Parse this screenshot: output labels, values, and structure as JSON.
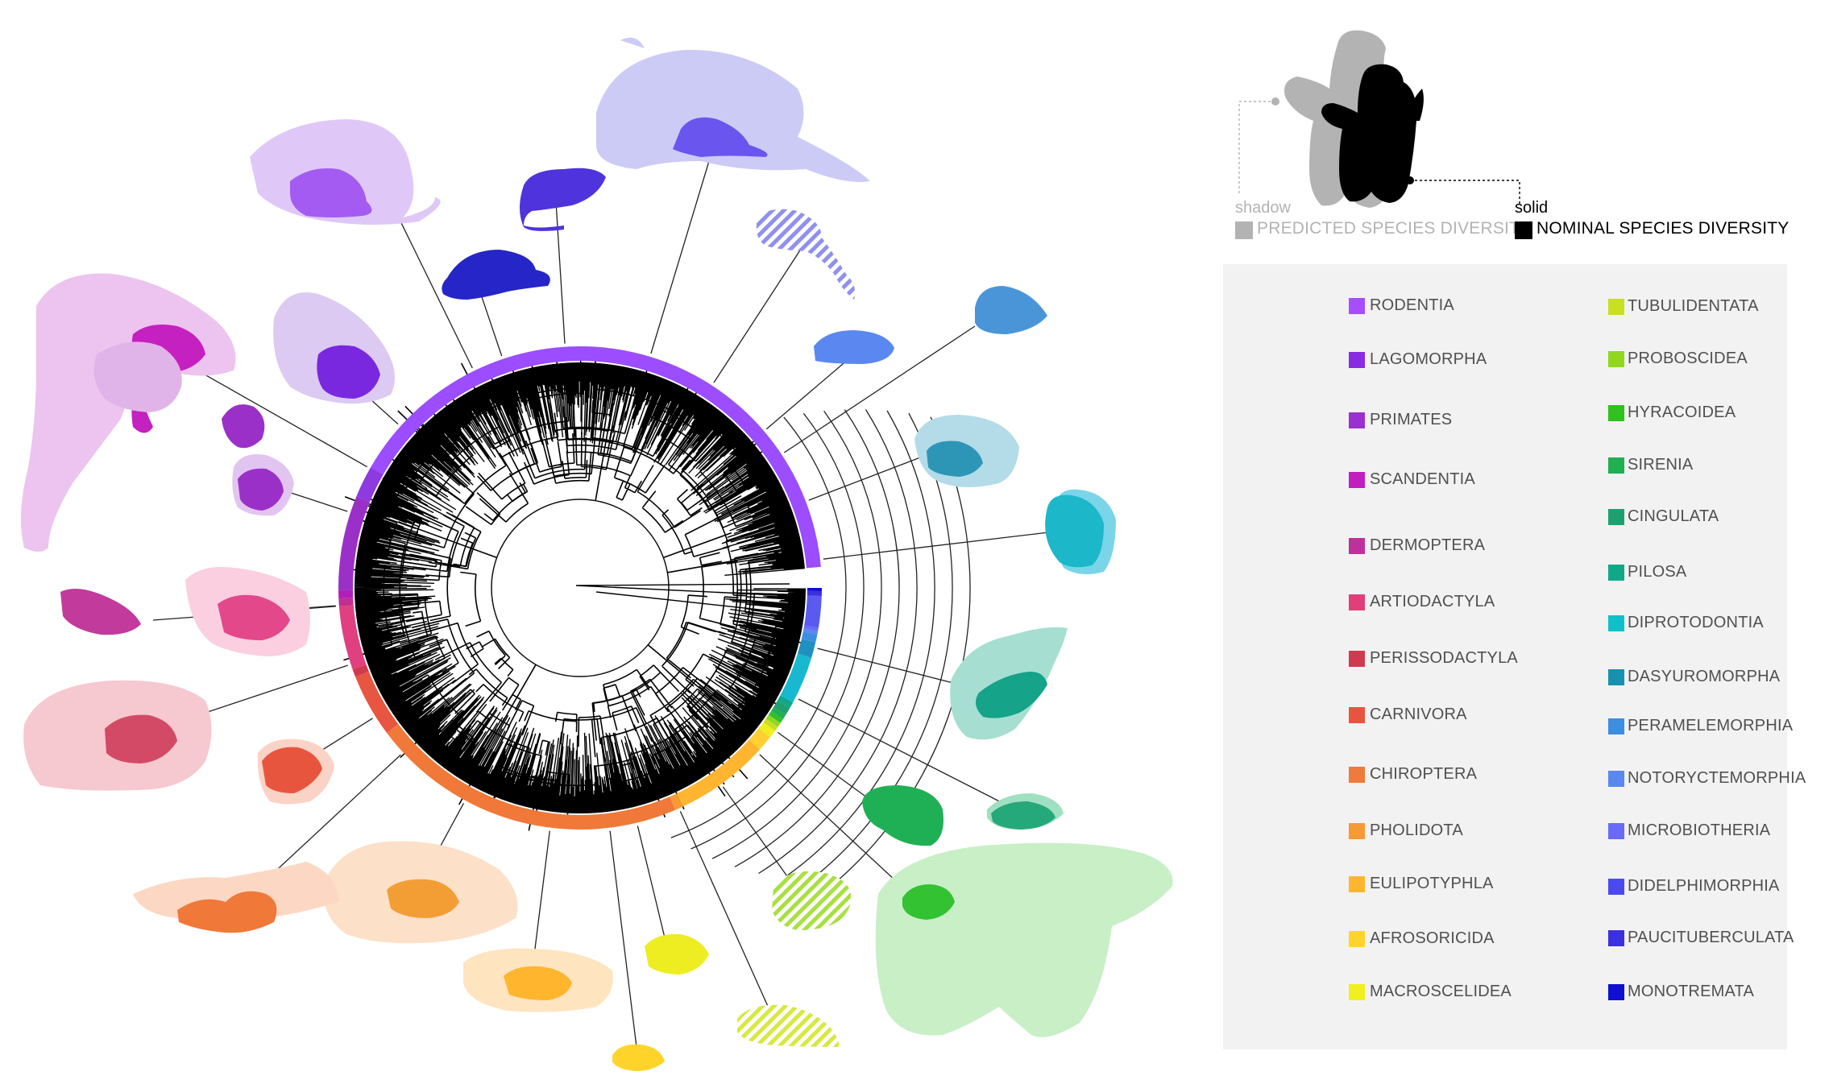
{
  "key": {
    "shadow_word": "shadow",
    "shadow_label": "PREDICTED SPECIES DIVERSITY",
    "solid_word": "solid",
    "solid_label": "NOMINAL SPECIES DIVERSITY",
    "shadow_color": "#b3b3b3",
    "solid_color": "#000000"
  },
  "orders": [
    {
      "label": "RODENTIA",
      "color": "#a64dff",
      "column": 0
    },
    {
      "label": "LAGOMORPHA",
      "color": "#8a2be2",
      "column": 0
    },
    {
      "label": "PRIMATES",
      "color": "#9b30d0",
      "column": 0
    },
    {
      "label": "SCANDENTIA",
      "color": "#c020c0",
      "column": 0
    },
    {
      "label": "DERMOPTERA",
      "color": "#c0309a",
      "column": 0
    },
    {
      "label": "ARTIODACTYLA",
      "color": "#e0407a",
      "column": 0
    },
    {
      "label": "PERISSODACTYLA",
      "color": "#d03a50",
      "column": 0
    },
    {
      "label": "CARNIVORA",
      "color": "#e8553f",
      "column": 0
    },
    {
      "label": "CHIROPTERA",
      "color": "#f07a3a",
      "column": 0
    },
    {
      "label": "PHOLIDOTA",
      "color": "#f59a35",
      "column": 0
    },
    {
      "label": "EULIPOTYPHLA",
      "color": "#ffb52e",
      "column": 0
    },
    {
      "label": "AFROSORICIDA",
      "color": "#ffd42a",
      "column": 0
    },
    {
      "label": "MACROSCELIDEA",
      "color": "#f0f020",
      "column": 0
    },
    {
      "label": "TUBULIDENTATA",
      "color": "#c8e020",
      "column": 1
    },
    {
      "label": "PROBOSCIDEA",
      "color": "#90d820",
      "column": 1
    },
    {
      "label": "HYRACOIDEA",
      "color": "#30c020",
      "column": 1
    },
    {
      "label": "SIRENIA",
      "color": "#20b050",
      "column": 1
    },
    {
      "label": "CINGULATA",
      "color": "#20a070",
      "column": 1
    },
    {
      "label": "PILOSA",
      "color": "#10a888",
      "column": 1
    },
    {
      "label": "DIPROTODONTIA",
      "color": "#10c0c8",
      "column": 1
    },
    {
      "label": "DASYUROMORPHA",
      "color": "#1890b0",
      "column": 1
    },
    {
      "label": "PERAMELEMORPHIA",
      "color": "#3d8ee0",
      "column": 1
    },
    {
      "label": "NOTORYCTEMORPHIA",
      "color": "#5a88f0",
      "column": 1
    },
    {
      "label": "MICROBIOTHERIA",
      "color": "#6a6af8",
      "column": 1
    },
    {
      "label": "DIDELPHIMORPHIA",
      "color": "#4a4af0",
      "column": 1
    },
    {
      "label": "PAUCITUBERCULATA",
      "color": "#3a30e0",
      "column": 1
    },
    {
      "label": "MONOTREMATA",
      "color": "#1010d0",
      "column": 1
    }
  ],
  "ring_segments": [
    {
      "order": "RODENTIA",
      "color": "#9b4dff",
      "share": 0.38
    },
    {
      "order": "LAGOMORPHA",
      "color": "#8d3ae0",
      "share": 0.02
    },
    {
      "order": "PRIMATES",
      "color": "#9b30c8",
      "share": 0.06
    },
    {
      "order": "SCANDENTIA",
      "color": "#b020b8",
      "share": 0.005
    },
    {
      "order": "DERMOPTERA",
      "color": "#c03090",
      "share": 0.005
    },
    {
      "order": "ARTIODACTYLA",
      "color": "#e04080",
      "share": 0.04
    },
    {
      "order": "PERISSODACTYLA",
      "color": "#d03a50",
      "share": 0.005
    },
    {
      "order": "CARNIVORA",
      "color": "#e85540",
      "share": 0.04
    },
    {
      "order": "CHIROPTERA",
      "color": "#f07838",
      "share": 0.2
    },
    {
      "order": "PHOLIDOTA",
      "color": "#f59a35",
      "share": 0.005
    },
    {
      "order": "EULIPOTYPHLA",
      "color": "#ffb530",
      "share": 0.06
    },
    {
      "order": "AFROSORICIDA",
      "color": "#ffd030",
      "share": 0.01
    },
    {
      "order": "MACROSCELIDEA",
      "color": "#f0ee20",
      "share": 0.005
    },
    {
      "order": "TUBULIDENTATA",
      "color": "#c8e020",
      "share": 0.003
    },
    {
      "order": "PROBOSCIDEA",
      "color": "#90d820",
      "share": 0.003
    },
    {
      "order": "HYRACOIDEA",
      "color": "#30c030",
      "share": 0.003
    },
    {
      "order": "SIRENIA",
      "color": "#20b050",
      "share": 0.003
    },
    {
      "order": "CINGULATA",
      "color": "#20a070",
      "share": 0.005
    },
    {
      "order": "PILOSA",
      "color": "#10a888",
      "share": 0.004
    },
    {
      "order": "DIPROTODONTIA",
      "color": "#18b8d0",
      "share": 0.03
    },
    {
      "order": "DASYUROMORPHA",
      "color": "#2090c0",
      "share": 0.01
    },
    {
      "order": "PERAMELEMORPHIA",
      "color": "#3d8ee0",
      "share": 0.005
    },
    {
      "order": "NOTORYCTEMORPHIA",
      "color": "#5a88f0",
      "share": 0.002
    },
    {
      "order": "MICROBIOTHERIA",
      "color": "#6a6af8",
      "share": 0.002
    },
    {
      "order": "DIDELPHIMORPHIA",
      "color": "#5a5af0",
      "share": 0.02
    },
    {
      "order": "PAUCITUBERCULATA",
      "color": "#3a30e0",
      "share": 0.003
    },
    {
      "order": "MONOTREMATA",
      "color": "#1010d0",
      "share": 0.002
    }
  ]
}
